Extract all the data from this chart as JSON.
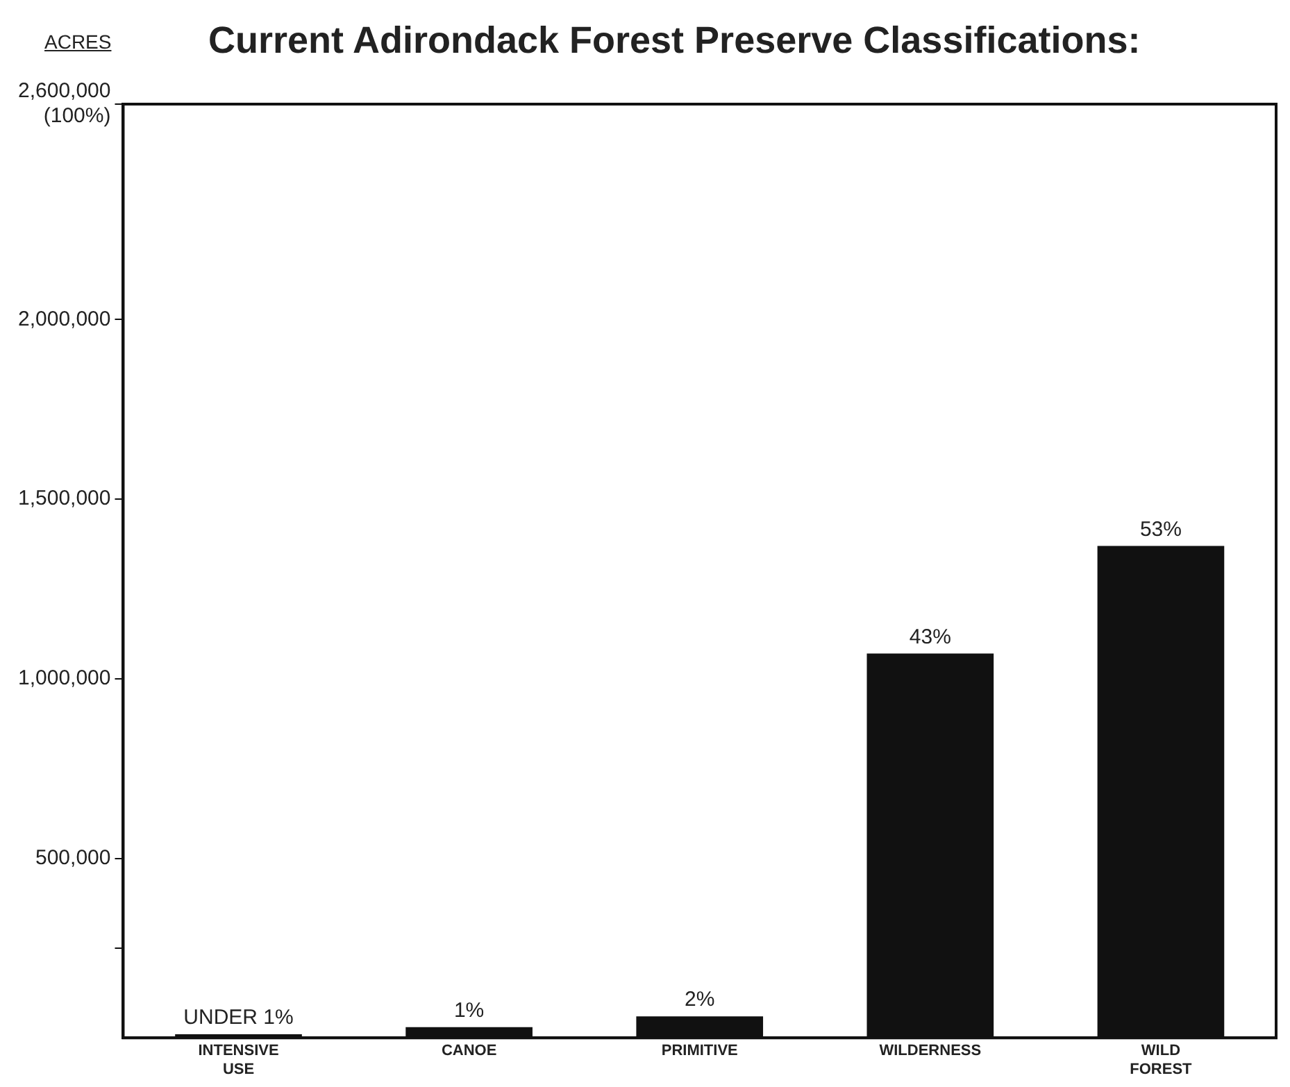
{
  "chart_data": {
    "type": "bar",
    "title": "Current Adirondack Forest Preserve Classifications:",
    "ylabel": "ACRES",
    "categories": [
      "INTENSIVE USE",
      "CANOE",
      "PRIMITIVE",
      "WILDERNESS",
      "WILD FOREST"
    ],
    "values": [
      10000,
      30000,
      60000,
      1070000,
      1370000
    ],
    "annotations": [
      {
        "text": "UNDER 1%",
        "x": "INTENSIVE USE",
        "y": 10000
      },
      {
        "text": "1%",
        "x": "CANOE",
        "y": 30000
      },
      {
        "text": "2%",
        "x": "PRIMITIVE",
        "y": 60000
      },
      {
        "text": "43%",
        "x": "WILDERNESS",
        "y": 1070000
      },
      {
        "text": "53%",
        "x": "WILD FOREST",
        "y": 1370000
      }
    ],
    "color": "#111111",
    "ylim": [
      0,
      2600000
    ],
    "yticks": [
      {
        "value": 250000,
        "label": null
      },
      {
        "value": 500000,
        "label": "500,000"
      },
      {
        "value": 1000000,
        "label": "1,000,000"
      },
      {
        "value": 1500000,
        "label": "1,500,000"
      },
      {
        "value": 2000000,
        "label": "2,000,000"
      },
      {
        "value": 2600000,
        "label": "2,600,000 (100%)"
      }
    ],
    "grid": false,
    "legend": false
  }
}
